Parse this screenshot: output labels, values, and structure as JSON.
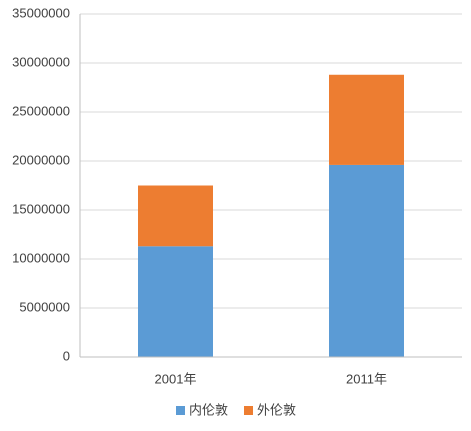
{
  "chart_data": {
    "type": "stacked-bar",
    "categories": [
      "2001年",
      "2011年"
    ],
    "series": [
      {
        "name": "内伦敦",
        "color": "#5b9bd5",
        "values": [
          11300000,
          19600000
        ]
      },
      {
        "name": "外伦敦",
        "color": "#ed7d31",
        "values": [
          6200000,
          9200000
        ]
      }
    ],
    "ylim": [
      0,
      35000000
    ],
    "yticks": [
      0,
      5000000,
      10000000,
      15000000,
      20000000,
      25000000,
      30000000,
      35000000
    ],
    "grid": true,
    "legend": "bottom"
  }
}
